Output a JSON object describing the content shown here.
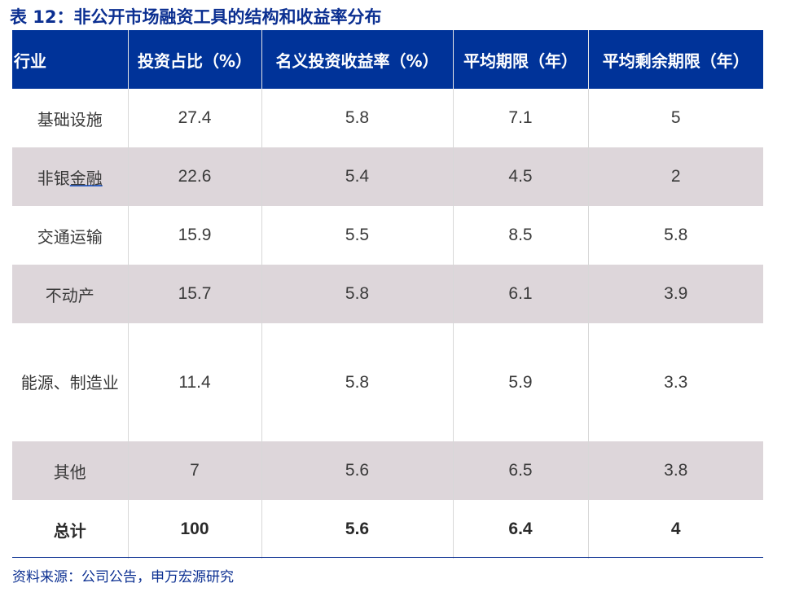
{
  "title": "表 12：非公开市场融资工具的结构和收益率分布",
  "table": {
    "headers": [
      "行业",
      "投资占比（%）",
      "名义投资收益率（%）",
      "平均期限（年）",
      "平均剩余期限（年）"
    ],
    "rows": [
      {
        "industry": "基础设施",
        "share": "27.4",
        "yield": "5.8",
        "term": "7.1",
        "remaining": "5"
      },
      {
        "industry_a": "非银",
        "industry_b": "金融",
        "share": "22.6",
        "yield": "5.4",
        "term": "4.5",
        "remaining": "2"
      },
      {
        "industry": "交通运输",
        "share": "15.9",
        "yield": "5.5",
        "term": "8.5",
        "remaining": "5.8"
      },
      {
        "industry": "不动产",
        "share": "15.7",
        "yield": "5.8",
        "term": "6.1",
        "remaining": "3.9"
      },
      {
        "industry": "能源、制造业",
        "share": "11.4",
        "yield": "5.8",
        "term": "5.9",
        "remaining": "3.3"
      },
      {
        "industry": "其他",
        "share": "7",
        "yield": "5.6",
        "term": "6.5",
        "remaining": "3.8"
      }
    ],
    "total": {
      "industry": "总计",
      "share": "100",
      "yield": "5.6",
      "term": "6.4",
      "remaining": "4"
    }
  },
  "source": "资料来源：公司公告，申万宏源研究",
  "colors": {
    "header_bg": "#003399",
    "title": "#0b2f91",
    "row_shade": "#ddd6da"
  }
}
